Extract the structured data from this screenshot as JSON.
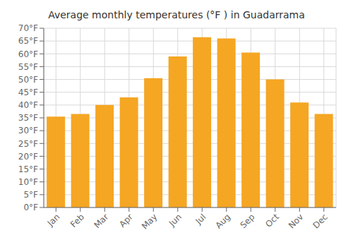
{
  "chart_data": {
    "type": "bar",
    "title": "Average monthly temperatures (°F ) in Guadarrama",
    "categories": [
      "Jan",
      "Feb",
      "Mar",
      "Apr",
      "May",
      "Jun",
      "Jul",
      "Aug",
      "Sep",
      "Oct",
      "Nov",
      "Dec"
    ],
    "values": [
      35.5,
      36.5,
      40.0,
      43.0,
      50.5,
      59.0,
      66.5,
      66.0,
      60.5,
      50.0,
      41.0,
      36.5
    ],
    "color": "#F5A623",
    "ylim": [
      0,
      70
    ],
    "yticks": [
      {
        "value": 0,
        "label": "0°F"
      },
      {
        "value": 5,
        "label": "5°F"
      },
      {
        "value": 10,
        "label": "10°F"
      },
      {
        "value": 15,
        "label": "15°F"
      },
      {
        "value": 20,
        "label": "20°F"
      },
      {
        "value": 25,
        "label": "25°F"
      },
      {
        "value": 30,
        "label": "30°F"
      },
      {
        "value": 35,
        "label": "35°F"
      },
      {
        "value": 40,
        "label": "40°F"
      },
      {
        "value": 45,
        "label": "45°F"
      },
      {
        "value": 50,
        "label": "50°F"
      },
      {
        "value": 55,
        "label": "55°F"
      },
      {
        "value": 60,
        "label": "60°F"
      },
      {
        "value": 65,
        "label": "65°F"
      },
      {
        "value": 70,
        "label": "70°F"
      }
    ],
    "grid": true
  }
}
